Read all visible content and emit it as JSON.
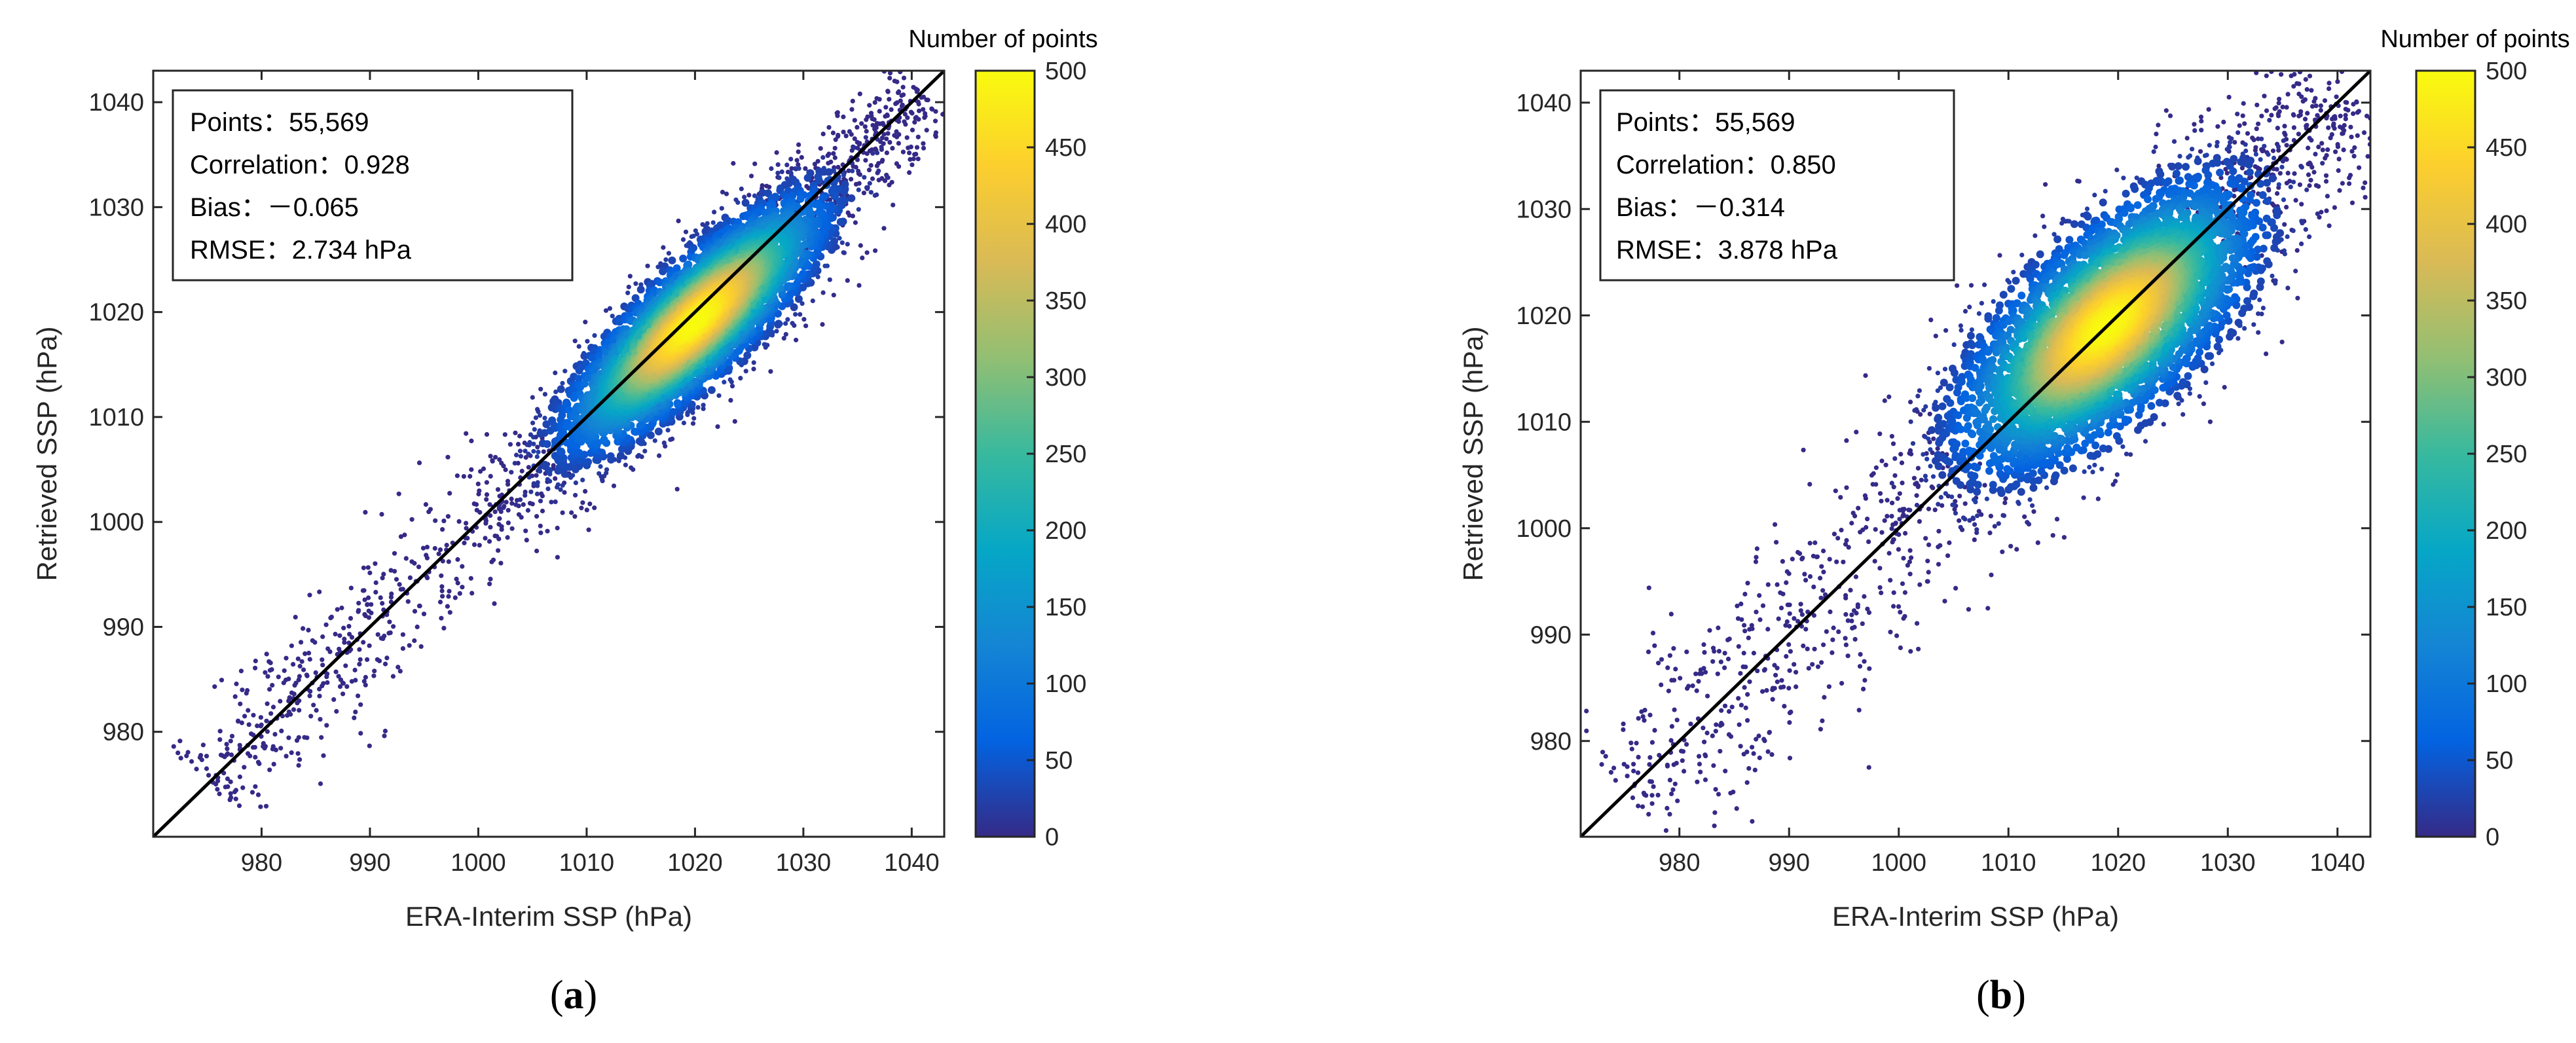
{
  "chart_data": [
    {
      "type": "scatter",
      "panel": "(a)",
      "panel_letter": "a",
      "xlabel": "ERA-Interim SSP (hPa)",
      "ylabel": "Retrieved SSP (hPa)",
      "xlim": [
        970,
        1043
      ],
      "ylim": [
        970,
        1043
      ],
      "xticks": [
        980,
        990,
        1000,
        1010,
        1020,
        1030,
        1040
      ],
      "yticks": [
        980,
        990,
        1000,
        1010,
        1020,
        1030,
        1040
      ],
      "reference_line": "1:1",
      "colorbar": {
        "title": "Number of points",
        "min": 0,
        "max": 500,
        "ticks": [
          0,
          50,
          100,
          150,
          200,
          250,
          300,
          350,
          400,
          450,
          500
        ],
        "colormap": "parula"
      },
      "stats": [
        "Points：55,569",
        "Correlation：0.928",
        "Bias：－0.065",
        "RMSE：2.734 hPa"
      ],
      "density": {
        "center": [
          1020,
          1019
        ],
        "spread_major": 8.0,
        "spread_minor": 2.4,
        "range_min": 975,
        "range_max": 1041
      },
      "n_points": 55569
    },
    {
      "type": "scatter",
      "panel": "(b)",
      "panel_letter": "b",
      "xlabel": "ERA-Interim SSP (hPa)",
      "ylabel": "Retrieved SSP (hPa)",
      "xlim": [
        971,
        1043
      ],
      "ylim": [
        971,
        1043
      ],
      "xticks": [
        980,
        990,
        1000,
        1010,
        1020,
        1030,
        1040
      ],
      "yticks": [
        980,
        990,
        1000,
        1010,
        1020,
        1030,
        1040
      ],
      "reference_line": "1:1",
      "colorbar": {
        "title": "Number of points",
        "min": 0,
        "max": 500,
        "ticks": [
          0,
          50,
          100,
          150,
          200,
          250,
          300,
          350,
          400,
          450,
          500
        ],
        "colormap": "parula"
      },
      "stats": [
        "Points：55,569",
        "Correlation：0.850",
        "Bias：－0.314",
        "RMSE：3.878 hPa"
      ],
      "density": {
        "center": [
          1019,
          1019
        ],
        "spread_major": 8.5,
        "spread_minor": 3.8,
        "range_min": 975,
        "range_max": 1041
      },
      "n_points": 55569
    }
  ],
  "colors": {
    "axis": "#262626",
    "reference_line": "#000000",
    "parula": [
      "#352a87",
      "#0363e1",
      "#1485d4",
      "#06a7c6",
      "#38b99e",
      "#92bf73",
      "#d9ba56",
      "#fcce2e",
      "#f9fb0e"
    ]
  }
}
